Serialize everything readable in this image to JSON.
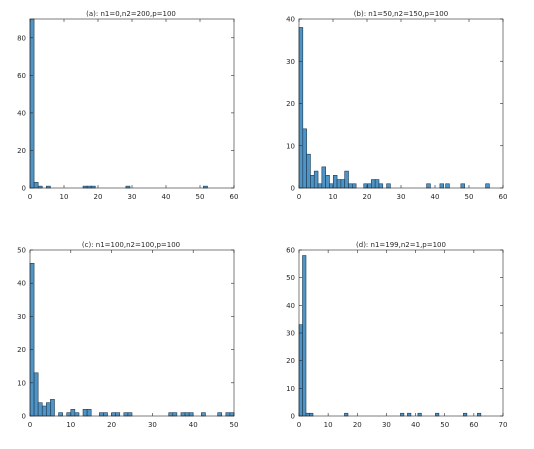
{
  "colors": {
    "bar_fill": "#4f94c4",
    "bar_edge": "#1b3a52",
    "axis": "#262626",
    "background": "#ffffff"
  },
  "chart_data": [
    {
      "type": "bar",
      "title": "(a): n1=0,n2=200,p=100",
      "xlim": [
        0,
        60
      ],
      "ylim": [
        0,
        90
      ],
      "xticks": [
        0,
        10,
        20,
        30,
        40,
        50,
        60
      ],
      "yticks": [
        0,
        20,
        40,
        60,
        80
      ],
      "bin_width": 1.2,
      "bins": [
        {
          "x": 0.0,
          "y": 90
        },
        {
          "x": 1.2,
          "y": 3
        },
        {
          "x": 2.4,
          "y": 1
        },
        {
          "x": 4.8,
          "y": 1
        },
        {
          "x": 15.6,
          "y": 1
        },
        {
          "x": 16.8,
          "y": 1
        },
        {
          "x": 18.0,
          "y": 1
        },
        {
          "x": 28.2,
          "y": 1
        },
        {
          "x": 51.0,
          "y": 1
        }
      ]
    },
    {
      "type": "bar",
      "title": "(b): n1=50,n2=150,p=100",
      "xlim": [
        0,
        60
      ],
      "ylim": [
        0,
        40
      ],
      "xticks": [
        0,
        10,
        20,
        30,
        40,
        50,
        60
      ],
      "yticks": [
        0,
        10,
        20,
        30,
        40
      ],
      "bin_width": 1.12,
      "bins": [
        {
          "x": 0.0,
          "y": 38
        },
        {
          "x": 1.12,
          "y": 14
        },
        {
          "x": 2.24,
          "y": 8
        },
        {
          "x": 3.36,
          "y": 3
        },
        {
          "x": 4.48,
          "y": 4
        },
        {
          "x": 5.6,
          "y": 1
        },
        {
          "x": 6.72,
          "y": 5
        },
        {
          "x": 7.84,
          "y": 3
        },
        {
          "x": 8.96,
          "y": 1
        },
        {
          "x": 10.08,
          "y": 3
        },
        {
          "x": 11.2,
          "y": 2
        },
        {
          "x": 12.32,
          "y": 2
        },
        {
          "x": 13.44,
          "y": 4
        },
        {
          "x": 14.56,
          "y": 1
        },
        {
          "x": 15.68,
          "y": 1
        },
        {
          "x": 19.04,
          "y": 1
        },
        {
          "x": 20.16,
          "y": 1
        },
        {
          "x": 21.28,
          "y": 2
        },
        {
          "x": 22.4,
          "y": 2
        },
        {
          "x": 23.52,
          "y": 1
        },
        {
          "x": 25.76,
          "y": 1
        },
        {
          "x": 37.52,
          "y": 1
        },
        {
          "x": 41.44,
          "y": 1
        },
        {
          "x": 43.12,
          "y": 1
        },
        {
          "x": 47.6,
          "y": 1
        },
        {
          "x": 54.88,
          "y": 1
        }
      ]
    },
    {
      "type": "bar",
      "title": "(c): n1=100,n2=100,p=100",
      "xlim": [
        0,
        50
      ],
      "ylim": [
        0,
        50
      ],
      "xticks": [
        0,
        10,
        20,
        30,
        40,
        50
      ],
      "yticks": [
        0,
        10,
        20,
        30,
        40,
        50
      ],
      "bin_width": 1.0,
      "bins": [
        {
          "x": 0,
          "y": 46
        },
        {
          "x": 1,
          "y": 13
        },
        {
          "x": 2,
          "y": 4
        },
        {
          "x": 3,
          "y": 3
        },
        {
          "x": 4,
          "y": 4
        },
        {
          "x": 5,
          "y": 5
        },
        {
          "x": 7,
          "y": 1
        },
        {
          "x": 9,
          "y": 1
        },
        {
          "x": 10,
          "y": 2
        },
        {
          "x": 11,
          "y": 1
        },
        {
          "x": 13,
          "y": 2
        },
        {
          "x": 14,
          "y": 2
        },
        {
          "x": 17,
          "y": 1
        },
        {
          "x": 18,
          "y": 1
        },
        {
          "x": 20,
          "y": 1
        },
        {
          "x": 21,
          "y": 1
        },
        {
          "x": 23,
          "y": 1
        },
        {
          "x": 24,
          "y": 1
        },
        {
          "x": 34,
          "y": 1
        },
        {
          "x": 35,
          "y": 1
        },
        {
          "x": 37,
          "y": 1
        },
        {
          "x": 38,
          "y": 1
        },
        {
          "x": 39,
          "y": 1
        },
        {
          "x": 42,
          "y": 1
        },
        {
          "x": 46,
          "y": 1
        },
        {
          "x": 48,
          "y": 1
        },
        {
          "x": 49,
          "y": 1
        }
      ]
    },
    {
      "type": "bar",
      "title": "(d): n1=199,n2=1,p=100",
      "xlim": [
        0,
        70
      ],
      "ylim": [
        0,
        60
      ],
      "xticks": [
        0,
        10,
        20,
        30,
        40,
        50,
        60,
        70
      ],
      "yticks": [
        0,
        10,
        20,
        30,
        40,
        50,
        60
      ],
      "bin_width": 1.2,
      "bins": [
        {
          "x": 0.0,
          "y": 33
        },
        {
          "x": 1.2,
          "y": 58
        },
        {
          "x": 2.4,
          "y": 1
        },
        {
          "x": 3.6,
          "y": 1
        },
        {
          "x": 15.6,
          "y": 1
        },
        {
          "x": 34.8,
          "y": 1
        },
        {
          "x": 37.2,
          "y": 1
        },
        {
          "x": 40.8,
          "y": 1
        },
        {
          "x": 46.8,
          "y": 1
        },
        {
          "x": 56.4,
          "y": 1
        },
        {
          "x": 61.2,
          "y": 1
        }
      ]
    }
  ]
}
